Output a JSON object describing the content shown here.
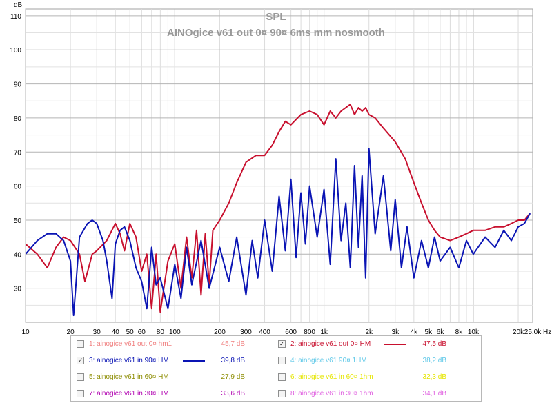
{
  "chart_data": {
    "type": "line",
    "title": "SPL",
    "subtitle": "AINOgice v61 out 0¤ 90¤ 6ms mm nosmooth",
    "ylabel": "dB",
    "x_unit_label": "Hz",
    "x_scale": "log",
    "xlim": [
      10,
      25000
    ],
    "ylim": [
      20,
      112
    ],
    "grid": true,
    "y_ticks": [
      "110",
      "100",
      "90",
      "80",
      "70",
      "60",
      "50",
      "40",
      "30"
    ],
    "x_tick_labels": [
      {
        "x": 10,
        "label": "10"
      },
      {
        "x": 20,
        "label": "20"
      },
      {
        "x": 30,
        "label": "30"
      },
      {
        "x": 40,
        "label": "40"
      },
      {
        "x": 50,
        "label": "50"
      },
      {
        "x": 60,
        "label": "60"
      },
      {
        "x": 80,
        "label": "80"
      },
      {
        "x": 100,
        "label": "100"
      },
      {
        "x": 200,
        "label": "200"
      },
      {
        "x": 300,
        "label": "300"
      },
      {
        "x": 400,
        "label": "400"
      },
      {
        "x": 600,
        "label": "600"
      },
      {
        "x": 800,
        "label": "800"
      },
      {
        "x": 1000,
        "label": "1k"
      },
      {
        "x": 2000,
        "label": "2k"
      },
      {
        "x": 3000,
        "label": "3k"
      },
      {
        "x": 4000,
        "label": "4k"
      },
      {
        "x": 5000,
        "label": "5k"
      },
      {
        "x": 6000,
        "label": "6k"
      },
      {
        "x": 8000,
        "label": "8k"
      },
      {
        "x": 10000,
        "label": "10k"
      },
      {
        "x": 20000,
        "label": "20k"
      },
      {
        "x": 25000,
        "label": "25,0k"
      }
    ],
    "series": [
      {
        "name": "2: ainogice v61 out 0¤ HM",
        "color": "#c8102e",
        "x": [
          10,
          12,
          14,
          16,
          18,
          20,
          23,
          25,
          28,
          30,
          35,
          40,
          43,
          46,
          50,
          55,
          60,
          65,
          70,
          75,
          80,
          90,
          100,
          110,
          120,
          130,
          140,
          150,
          160,
          170,
          180,
          200,
          230,
          260,
          300,
          350,
          400,
          450,
          500,
          550,
          600,
          700,
          800,
          900,
          1000,
          1100,
          1200,
          1300,
          1500,
          1600,
          1700,
          1800,
          1900,
          2000,
          2200,
          2500,
          3000,
          3500,
          4000,
          4500,
          5000,
          5500,
          6000,
          7000,
          8000,
          9000,
          10000,
          12000,
          14000,
          16000,
          18000,
          20000,
          22000,
          24000
        ],
        "y": [
          43,
          40,
          36,
          42,
          45,
          44,
          40,
          32,
          40,
          41,
          44,
          49,
          46,
          41,
          49,
          45,
          35,
          40,
          24,
          40,
          23,
          38,
          43,
          30,
          45,
          33,
          47,
          28,
          46,
          31,
          47,
          50,
          55,
          61,
          67,
          69,
          69,
          72,
          76,
          79,
          78,
          81,
          82,
          81,
          78,
          82,
          80,
          82,
          84,
          81,
          83,
          82,
          83,
          81,
          80,
          77,
          73,
          68,
          61,
          55,
          50,
          47,
          45,
          44,
          45,
          46,
          47,
          47,
          48,
          48,
          49,
          50,
          50,
          52
        ]
      },
      {
        "name": "3: ainogice v61 in 90¤ HM",
        "color": "#0a14b4",
        "x": [
          10,
          12,
          14,
          16,
          18,
          20,
          21,
          23,
          26,
          28,
          30,
          33,
          35,
          38,
          40,
          43,
          46,
          50,
          55,
          60,
          65,
          70,
          75,
          80,
          90,
          100,
          110,
          120,
          130,
          150,
          170,
          200,
          230,
          260,
          300,
          330,
          360,
          400,
          450,
          500,
          550,
          600,
          650,
          700,
          750,
          800,
          900,
          1000,
          1100,
          1200,
          1300,
          1400,
          1500,
          1600,
          1700,
          1800,
          1900,
          2000,
          2200,
          2500,
          2800,
          3000,
          3300,
          3600,
          4000,
          4500,
          5000,
          5500,
          6000,
          7000,
          8000,
          9000,
          10000,
          12000,
          14000,
          16000,
          18000,
          20000,
          22000,
          24000
        ],
        "y": [
          40,
          44,
          46,
          46,
          44,
          38,
          22,
          45,
          49,
          50,
          49,
          44,
          38,
          27,
          43,
          47,
          48,
          44,
          36,
          32,
          24,
          42,
          31,
          33,
          24,
          37,
          27,
          42,
          31,
          44,
          30,
          42,
          32,
          45,
          28,
          44,
          33,
          50,
          35,
          57,
          41,
          62,
          39,
          58,
          43,
          60,
          45,
          59,
          37,
          68,
          44,
          55,
          36,
          66,
          42,
          63,
          33,
          71,
          46,
          63,
          41,
          56,
          36,
          48,
          33,
          44,
          36,
          45,
          38,
          42,
          36,
          44,
          40,
          45,
          42,
          47,
          44,
          48,
          49,
          52
        ]
      }
    ]
  },
  "legend": {
    "items": [
      {
        "label": "1: ainogice v61 out 0¤ hm1",
        "value": "45,7 dB",
        "checked": false,
        "color": "#f08080"
      },
      {
        "label": "2: ainogice v61 out 0¤ HM",
        "value": "47,5 dB",
        "checked": true,
        "color": "#c8102e"
      },
      {
        "label": "3: ainogice v61 in 90¤ HM",
        "value": "39,8 dB",
        "checked": true,
        "color": "#0a14b4"
      },
      {
        "label": "4: ainogice v61 90¤ 1HM",
        "value": "38,2 dB",
        "checked": false,
        "color": "#5ec8e8"
      },
      {
        "label": "5: ainogice v61 in 60¤ HM",
        "value": "27,9 dB",
        "checked": false,
        "color": "#8c8c00"
      },
      {
        "label": "6: ainogice v61 in 60¤ 1hm",
        "value": "32,3 dB",
        "checked": false,
        "color": "#e6e600"
      },
      {
        "label": "7: ainogice v61 in 30¤ HM",
        "value": "33,6 dB",
        "checked": false,
        "color": "#b000b0"
      },
      {
        "label": "8: ainogice v61 in 30¤ 1hm",
        "value": "34,1 dB",
        "checked": false,
        "color": "#e060e0"
      }
    ]
  }
}
